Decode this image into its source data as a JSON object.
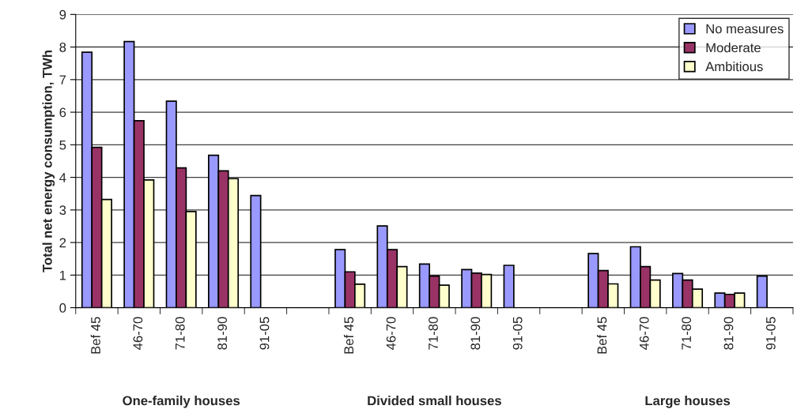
{
  "chart_data": {
    "type": "bar",
    "ylabel": "Total net energy consumption, TWh",
    "categories": [
      "Bef 45",
      "46-70",
      "71-80",
      "81-90",
      "91-05",
      null,
      "Bef 45",
      "46-70",
      "71-80",
      "81-90",
      "91-05",
      null,
      "Bef 45",
      "46-70",
      "71-80",
      "81-90",
      "91-05"
    ],
    "series": [
      {
        "name": "No measures",
        "color": "#9999ff",
        "values": [
          7.84,
          8.17,
          6.34,
          4.68,
          3.44,
          null,
          1.78,
          2.51,
          1.34,
          1.17,
          1.3,
          null,
          1.66,
          1.87,
          1.05,
          0.45,
          0.97
        ]
      },
      {
        "name": "Moderate",
        "color": "#993366",
        "values": [
          4.92,
          5.74,
          4.29,
          4.2,
          null,
          null,
          1.1,
          1.78,
          0.97,
          1.06,
          null,
          null,
          1.14,
          1.26,
          0.85,
          0.41,
          null
        ]
      },
      {
        "name": "Ambitious",
        "color": "#ffffcc",
        "values": [
          3.32,
          3.92,
          2.95,
          3.96,
          null,
          null,
          0.72,
          1.26,
          0.69,
          1.02,
          null,
          null,
          0.73,
          0.85,
          0.57,
          0.45,
          null
        ]
      }
    ],
    "annotations": [
      "One-family houses",
      "Divided small houses",
      "Large houses"
    ],
    "ylim": [
      0,
      9
    ],
    "yticks": [
      0,
      1,
      2,
      3,
      4,
      5,
      6,
      7,
      8,
      9
    ],
    "grid": "y",
    "legend": "top right"
  }
}
